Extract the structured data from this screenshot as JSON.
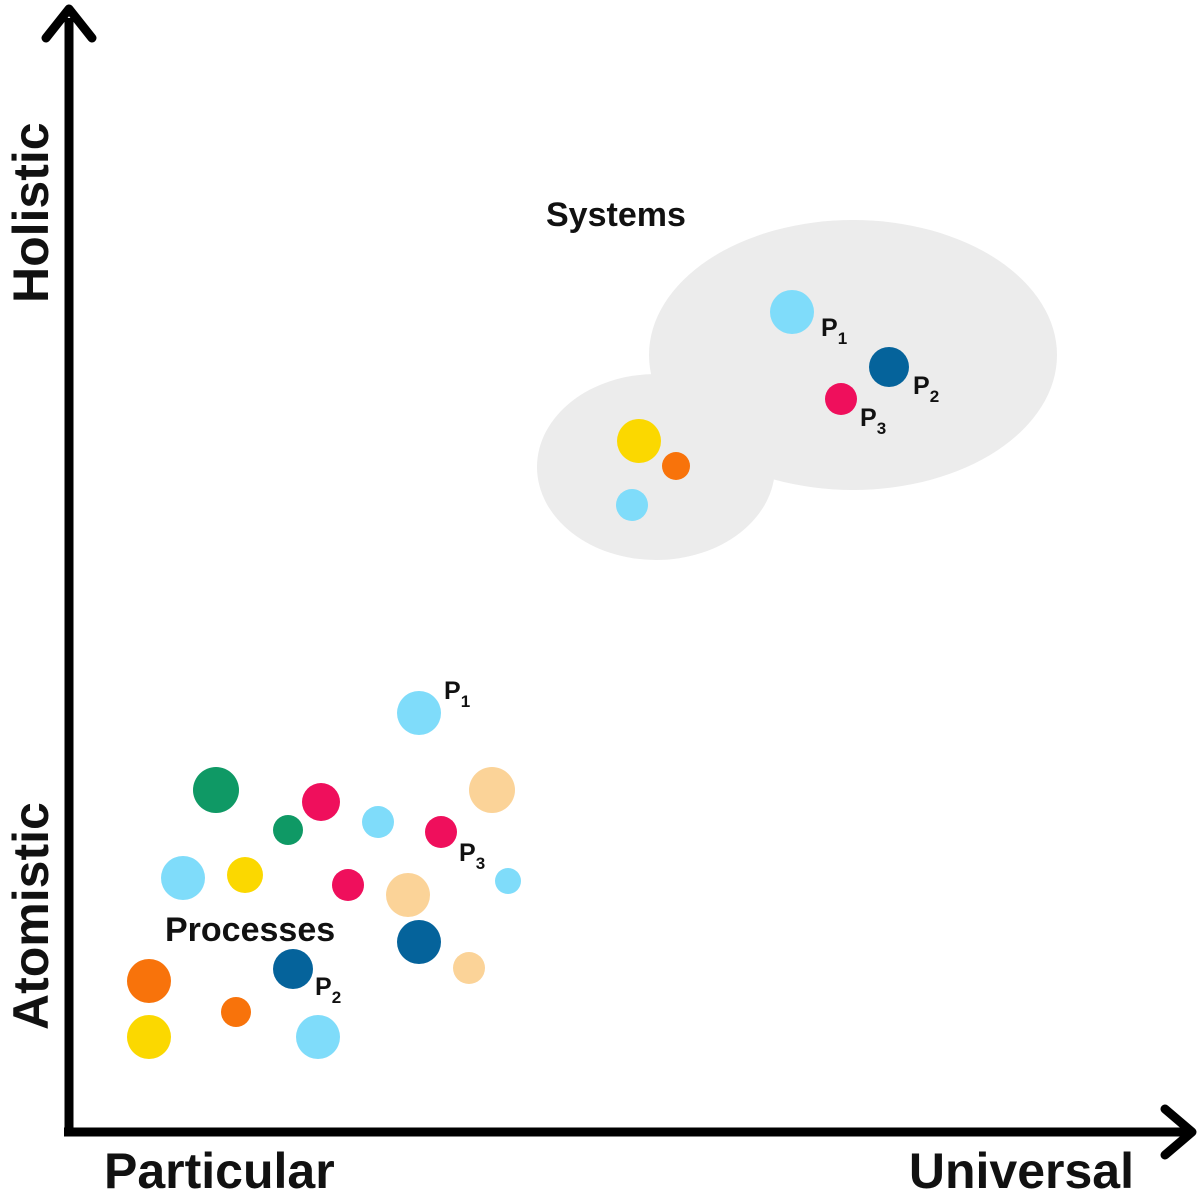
{
  "axes": {
    "x_left_label": "Particular",
    "x_right_label": "Universal",
    "y_bottom_label": "Atomistic",
    "y_top_label": "Holistic"
  },
  "groups": {
    "systems_label": "Systems",
    "processes_label": "Processes"
  },
  "colors": {
    "light-blue": "#7fdcfa",
    "dark-blue": "#05639b",
    "crimson": "#ef0f5c",
    "yellow": "#fbd800",
    "orange": "#f8730b",
    "green": "#0f9965",
    "peach": "#fbd398",
    "cluster-grey": "#ececec",
    "axis": "#000000"
  },
  "labels": {
    "p1": {
      "letter": "P",
      "sub": "1"
    },
    "p2": {
      "letter": "P",
      "sub": "2"
    },
    "p3": {
      "letter": "P",
      "sub": "3"
    }
  }
}
